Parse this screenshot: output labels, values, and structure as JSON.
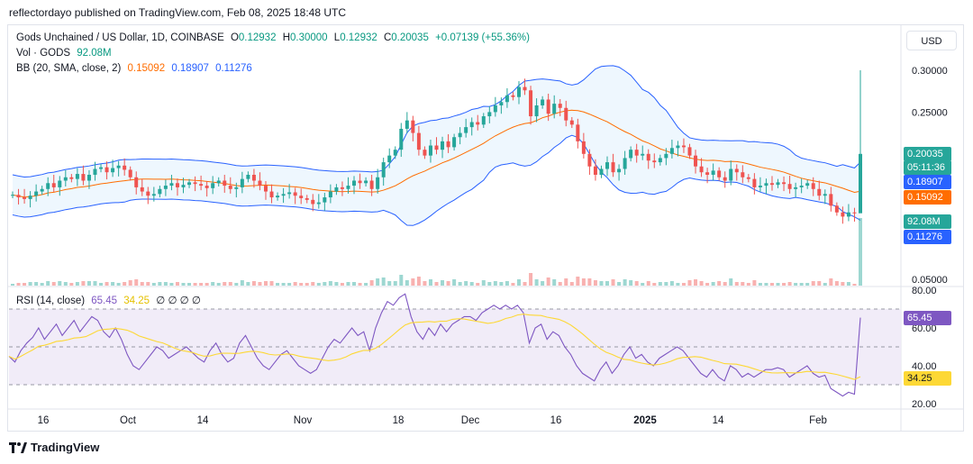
{
  "header": {
    "published_by": "reflectordayo published on TradingView.com, Feb 08, 2025 18:48 UTC"
  },
  "legend": {
    "symbol": "Gods Unchained / US Dollar, 1D, COINBASE",
    "o_label": "O",
    "o": "0.12932",
    "h_label": "H",
    "h": "0.30000",
    "l_label": "L",
    "l": "0.12932",
    "c_label": "C",
    "c": "0.20035",
    "change": "+0.07139 (+55.36%)",
    "vol_label": "Vol · GODS",
    "vol": "92.08M",
    "bb_label": "BB (20, SMA, close, 2)",
    "bb_mid": "0.15092",
    "bb_upper": "0.18907",
    "bb_lower": "0.11276",
    "rsi_label": "RSI (14, close)",
    "rsi": "65.45",
    "rsi_ma": "34.25",
    "rsi_extra": "∅ ∅ ∅ ∅"
  },
  "currency_button": "USD",
  "branding": "TradingView",
  "colors": {
    "up": "#26a69a",
    "down": "#ef5350",
    "bb_band": "#2962ff",
    "bb_mid": "#ff6d00",
    "bb_fill": "#e3f2fd",
    "rsi_line": "#7e57c2",
    "rsi_ma": "#fdd835",
    "rsi_fill": "#ede7f6"
  },
  "tags": {
    "price": "0.20035",
    "countdown": "05:11:36",
    "bb_upper": "0.18907",
    "bb_mid": "0.15092",
    "vol": "92.08M",
    "bb_lower": "0.11276",
    "rsi": "65.45",
    "rsi_ma": "34.25"
  },
  "chart_data": [
    {
      "type": "candlestick",
      "title": "Gods Unchained / US Dollar, 1D, COINBASE",
      "price_ticks": [
        "0.30000",
        "0.25000",
        "0.05000"
      ],
      "x_ticks": [
        "16",
        "Oct",
        "14",
        "Nov",
        "18",
        "Dec",
        "16",
        "2025",
        "14",
        "Feb"
      ],
      "price_range": [
        0.05,
        0.31
      ],
      "last_candle": {
        "open": 0.12932,
        "high": 0.3,
        "low": 0.12932,
        "close": 0.20035,
        "volume": "92.08M"
      },
      "close_series": [
        0.151,
        0.148,
        0.146,
        0.15,
        0.155,
        0.158,
        0.165,
        0.16,
        0.168,
        0.172,
        0.17,
        0.176,
        0.168,
        0.175,
        0.182,
        0.184,
        0.178,
        0.183,
        0.186,
        0.181,
        0.172,
        0.16,
        0.155,
        0.15,
        0.152,
        0.158,
        0.162,
        0.165,
        0.16,
        0.163,
        0.166,
        0.164,
        0.162,
        0.159,
        0.165,
        0.168,
        0.162,
        0.158,
        0.16,
        0.17,
        0.175,
        0.168,
        0.162,
        0.155,
        0.148,
        0.15,
        0.152,
        0.154,
        0.15,
        0.147,
        0.145,
        0.14,
        0.142,
        0.148,
        0.155,
        0.16,
        0.158,
        0.162,
        0.168,
        0.165,
        0.168,
        0.158,
        0.172,
        0.19,
        0.198,
        0.205,
        0.23,
        0.24,
        0.225,
        0.205,
        0.198,
        0.21,
        0.205,
        0.215,
        0.208,
        0.22,
        0.225,
        0.232,
        0.238,
        0.235,
        0.245,
        0.25,
        0.258,
        0.262,
        0.27,
        0.268,
        0.28,
        0.276,
        0.245,
        0.258,
        0.265,
        0.248,
        0.26,
        0.255,
        0.24,
        0.235,
        0.215,
        0.2,
        0.185,
        0.175,
        0.182,
        0.19,
        0.178,
        0.182,
        0.195,
        0.205,
        0.198,
        0.2,
        0.192,
        0.19,
        0.195,
        0.2,
        0.207,
        0.21,
        0.208,
        0.198,
        0.185,
        0.178,
        0.175,
        0.18,
        0.172,
        0.168,
        0.182,
        0.178,
        0.172,
        0.17,
        0.16,
        0.162,
        0.165,
        0.163,
        0.166,
        0.164,
        0.158,
        0.16,
        0.162,
        0.165,
        0.158,
        0.15,
        0.152,
        0.138,
        0.13,
        0.125,
        0.13,
        0.129,
        0.2
      ],
      "volume": "relative bars, last bar 92.08M"
    },
    {
      "type": "line",
      "title": "RSI (14, close)",
      "y_ticks": [
        "80.00",
        "60.00",
        "40.00",
        "20.00"
      ],
      "ylim": [
        20,
        80
      ],
      "bands": [
        30,
        70
      ],
      "rsi_last": 65.45,
      "rsi_ma_last": 34.25,
      "rsi_series": [
        45,
        42,
        48,
        52,
        55,
        60,
        54,
        58,
        62,
        56,
        60,
        64,
        58,
        62,
        66,
        64,
        58,
        55,
        60,
        54,
        46,
        40,
        38,
        42,
        46,
        50,
        48,
        44,
        46,
        48,
        50,
        47,
        44,
        42,
        48,
        52,
        46,
        42,
        44,
        52,
        56,
        50,
        44,
        40,
        38,
        42,
        46,
        48,
        44,
        40,
        38,
        36,
        38,
        44,
        50,
        54,
        52,
        56,
        60,
        56,
        58,
        48,
        60,
        68,
        74,
        72,
        76,
        78,
        66,
        58,
        54,
        60,
        56,
        62,
        58,
        62,
        64,
        66,
        66,
        64,
        68,
        70,
        72,
        70,
        72,
        70,
        72,
        68,
        52,
        60,
        62,
        54,
        58,
        56,
        50,
        46,
        40,
        36,
        34,
        32,
        38,
        42,
        36,
        40,
        46,
        50,
        44,
        46,
        42,
        40,
        44,
        46,
        48,
        50,
        48,
        44,
        40,
        36,
        34,
        38,
        34,
        32,
        40,
        38,
        34,
        36,
        34,
        36,
        38,
        38,
        39,
        38,
        34,
        36,
        38,
        40,
        36,
        34,
        35,
        28,
        26,
        24,
        26,
        25,
        65.45
      ]
    }
  ]
}
